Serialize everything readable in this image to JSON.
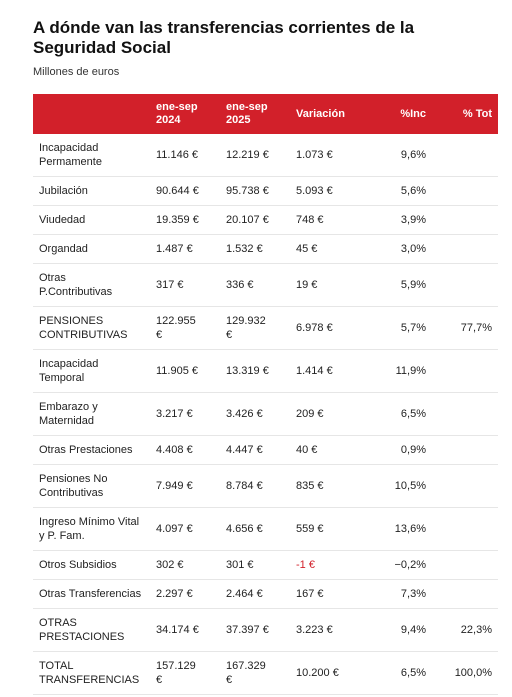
{
  "header": {
    "title": "A dónde van las transferencias corrientes de la Seguridad Social",
    "subtitle": "Millones de euros"
  },
  "table": {
    "columns": [
      "",
      "ene-sep 2024",
      "ene-sep 2025",
      "Variación",
      "%Inc",
      "% Tot"
    ],
    "rows": [
      [
        "Incapacidad Permamente",
        "11.146 €",
        "12.219 €",
        "1.073 €",
        "9,6%"
      ],
      [
        "Jubilación",
        "90.644 €",
        "95.738 €",
        "5.093 €",
        "5,6%"
      ],
      [
        "Viudedad",
        "19.359 €",
        "20.107 €",
        "748 €",
        "3,9%"
      ],
      [
        "Organdad",
        "1.487 €",
        "1.532 €",
        "45 €",
        "3,0%"
      ],
      [
        "Otras P.Contributivas",
        "317 €",
        "336 €",
        "19 €",
        "5,9%"
      ],
      [
        "PENSIONES CONTRIBUTIVAS",
        "122.955 €",
        "129.932 €",
        "6.978 €",
        "5,7%",
        "77,7%"
      ],
      [
        "Incapacidad Temporal",
        "11.905 €",
        "13.319 €",
        "1.414 €",
        "11,9%"
      ],
      [
        "Embarazo y Maternidad",
        "3.217 €",
        "3.426 €",
        "209 €",
        "6,5%"
      ],
      [
        "Otras Prestaciones",
        "4.408 €",
        "4.447 €",
        "40 €",
        "0,9%"
      ],
      [
        "Pensiones No Contributivas",
        "7.949 €",
        "8.784 €",
        "835 €",
        "10,5%"
      ],
      [
        "Ingreso Mínimo Vital y P. Fam.",
        "4.097 €",
        "4.656 €",
        "559 €",
        "13,6%"
      ],
      [
        "Otros Subsidios",
        "302 €",
        "301 €",
        "-1 €",
        "−0,2%"
      ],
      [
        "Otras Transferencias",
        "2.297 €",
        "2.464 €",
        "167 €",
        "7,3%"
      ],
      [
        "OTRAS PRESTACIONES",
        "34.174 €",
        "37.397 €",
        "3.223 €",
        "9,4%",
        "22,3%"
      ],
      [
        "TOTAL TRANSFERENCIAS",
        "157.129 €",
        "167.329 €",
        "10.200 €",
        "6,5%",
        "100,0%"
      ]
    ]
  }
}
